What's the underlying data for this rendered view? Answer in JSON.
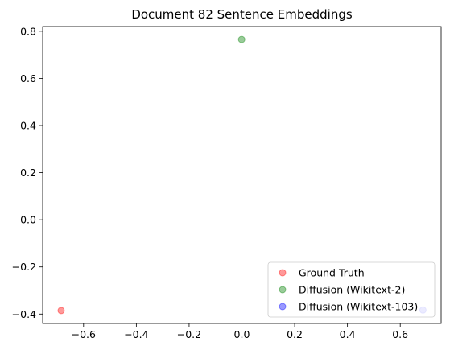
{
  "chart_data": {
    "type": "scatter",
    "title": "Document 82 Sentence Embeddings",
    "xlabel": "",
    "ylabel": "",
    "xlim": [
      -0.755,
      0.755
    ],
    "ylim": [
      -0.44,
      0.82
    ],
    "x_ticks": [
      -0.6,
      -0.4,
      -0.2,
      0.0,
      0.2,
      0.4,
      0.6
    ],
    "x_tick_labels": [
      "−0.6",
      "−0.4",
      "−0.2",
      "0.0",
      "0.2",
      "0.4",
      "0.6"
    ],
    "y_ticks": [
      -0.4,
      -0.2,
      0.0,
      0.2,
      0.4,
      0.6,
      0.8
    ],
    "y_tick_labels": [
      "−0.4",
      "−0.2",
      "0.0",
      "0.2",
      "0.4",
      "0.6",
      "0.8"
    ],
    "grid": false,
    "legend_position": "lower-right",
    "series": [
      {
        "name": "Ground Truth",
        "color": "#ff0000",
        "alpha": 0.4,
        "points": [
          {
            "x": -0.685,
            "y": -0.385
          }
        ]
      },
      {
        "name": "Diffusion (Wikitext-2)",
        "color": "#008000",
        "alpha": 0.4,
        "points": [
          {
            "x": -0.001,
            "y": 0.765
          }
        ]
      },
      {
        "name": "Diffusion (Wikitext-103)",
        "color": "#0000ff",
        "alpha": 0.4,
        "points": [
          {
            "x": 0.686,
            "y": -0.383
          }
        ]
      }
    ]
  }
}
